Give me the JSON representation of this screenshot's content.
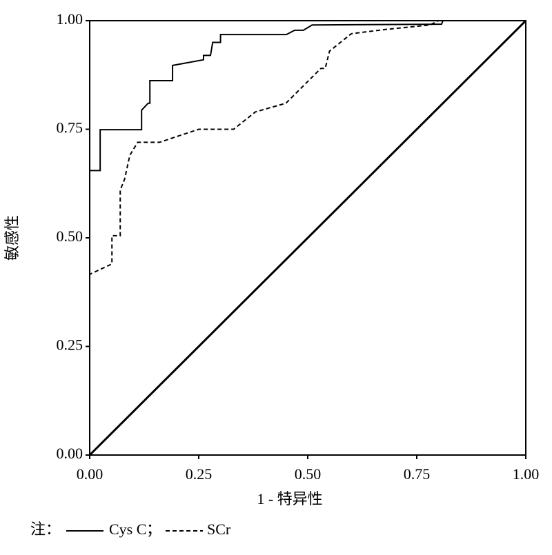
{
  "chart_data": {
    "type": "line",
    "x_label": "1 - 特异性",
    "y_label": "敏感性",
    "xlim": [
      0,
      1
    ],
    "ylim": [
      0,
      1
    ],
    "xticks": [
      {
        "value": 0,
        "label": "0.00"
      },
      {
        "value": 0.25,
        "label": "0.25"
      },
      {
        "value": 0.5,
        "label": "0.50"
      },
      {
        "value": 0.75,
        "label": "0.75"
      },
      {
        "value": 1,
        "label": "1.00"
      }
    ],
    "yticks": [
      {
        "value": 0,
        "label": "0.00"
      },
      {
        "value": 0.25,
        "label": "0.25"
      },
      {
        "value": 0.5,
        "label": "0.50"
      },
      {
        "value": 0.75,
        "label": "0.75"
      },
      {
        "value": 1,
        "label": "1.00"
      }
    ],
    "legend_prefix": "注：",
    "legend_separator": "；",
    "reference_line": {
      "x": [
        0,
        1
      ],
      "values": [
        0,
        1
      ],
      "color": "#000"
    },
    "series": [
      {
        "name": "Cys C",
        "color": "#000",
        "dash": "solid",
        "x": [
          0,
          0,
          0.024,
          0.024,
          0.119,
          0.119,
          0.134,
          0.138,
          0.138,
          0.19,
          0.19,
          0.261,
          0.261,
          0.277,
          0.282,
          0.3,
          0.3,
          0.451,
          0.47,
          0.49,
          0.51,
          0.807,
          0.81,
          1
        ],
        "values": [
          0,
          0.655,
          0.655,
          0.749,
          0.749,
          0.794,
          0.81,
          0.81,
          0.862,
          0.862,
          0.897,
          0.91,
          0.92,
          0.92,
          0.95,
          0.95,
          0.968,
          0.968,
          0.978,
          0.978,
          0.99,
          0.992,
          1,
          1
        ]
      },
      {
        "name": "SCr",
        "color": "#000",
        "dash": "dashed",
        "x": [
          0,
          0,
          0.051,
          0.051,
          0.07,
          0.07,
          0.08,
          0.092,
          0.11,
          0.16,
          0.25,
          0.33,
          0.38,
          0.45,
          0.5,
          0.53,
          0.54,
          0.55,
          0.6,
          0.68,
          0.78,
          0.8,
          1
        ],
        "values": [
          0,
          0.416,
          0.44,
          0.505,
          0.505,
          0.61,
          0.635,
          0.69,
          0.72,
          0.72,
          0.75,
          0.75,
          0.79,
          0.81,
          0.86,
          0.89,
          0.89,
          0.93,
          0.97,
          0.98,
          0.99,
          1,
          1
        ]
      }
    ]
  }
}
